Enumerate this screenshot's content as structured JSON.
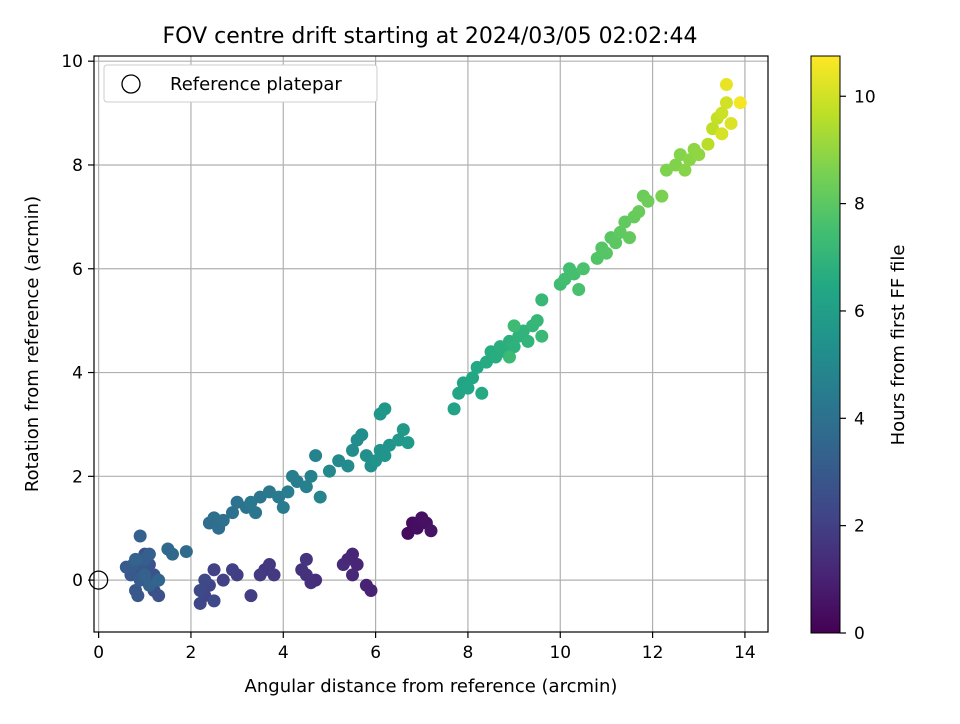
{
  "chart_data": {
    "type": "scatter",
    "title": "FOV centre drift starting at 2024/03/05 02:02:44",
    "xlabel": "Angular distance from reference (arcmin)",
    "ylabel": "Rotation from reference (arcmin)",
    "xlim": [
      -0.1,
      14.5
    ],
    "ylim": [
      -1.0,
      10.1
    ],
    "xticks": [
      0,
      2,
      4,
      6,
      8,
      10,
      12,
      14
    ],
    "yticks": [
      0,
      2,
      4,
      6,
      8,
      10
    ],
    "grid": true,
    "legend": {
      "placement": "top-left",
      "entries": [
        "Reference platepar"
      ]
    },
    "reference_point": {
      "x": 0,
      "y": 0,
      "marker": "open-circle"
    },
    "colorbar": {
      "label": "Hours from first FF file",
      "colormap": "viridis",
      "range": [
        0,
        10.75
      ],
      "ticks": [
        0,
        2,
        4,
        6,
        8,
        10
      ]
    },
    "series": [
      {
        "color_by": "hours",
        "points": [
          [
            6.7,
            0.9,
            0.3
          ],
          [
            6.8,
            1.1,
            0.35
          ],
          [
            6.9,
            1.0,
            0.4
          ],
          [
            7.0,
            1.2,
            0.45
          ],
          [
            7.1,
            1.1,
            0.5
          ],
          [
            7.2,
            0.95,
            0.55
          ],
          [
            5.9,
            -0.2,
            1.0
          ],
          [
            5.8,
            -0.1,
            1.05
          ],
          [
            5.6,
            0.3,
            1.1
          ],
          [
            5.5,
            0.5,
            1.15
          ],
          [
            5.4,
            0.4,
            1.2
          ],
          [
            5.5,
            0.1,
            1.25
          ],
          [
            5.3,
            0.3,
            1.3
          ],
          [
            4.7,
            0.0,
            1.4
          ],
          [
            4.6,
            -0.05,
            1.45
          ],
          [
            4.5,
            0.1,
            1.5
          ],
          [
            4.4,
            0.2,
            1.55
          ],
          [
            4.5,
            0.4,
            1.6
          ],
          [
            3.6,
            0.2,
            1.7
          ],
          [
            3.7,
            0.3,
            1.75
          ],
          [
            3.8,
            0.1,
            1.8
          ],
          [
            3.5,
            0.1,
            1.85
          ],
          [
            3.3,
            -0.3,
            1.9
          ],
          [
            3.0,
            0.1,
            1.95
          ],
          [
            2.9,
            0.2,
            2.0
          ],
          [
            2.7,
            0.0,
            2.05
          ],
          [
            2.5,
            0.2,
            2.1
          ],
          [
            2.4,
            -0.1,
            2.15
          ],
          [
            2.3,
            -0.3,
            2.2
          ],
          [
            2.2,
            -0.45,
            2.25
          ],
          [
            2.5,
            -0.4,
            2.3
          ],
          [
            2.3,
            0.0,
            2.35
          ],
          [
            2.2,
            -0.2,
            2.4
          ],
          [
            1.2,
            -0.2,
            2.6
          ],
          [
            1.3,
            -0.3,
            2.65
          ],
          [
            1.2,
            0.1,
            2.7
          ],
          [
            1.1,
            0.3,
            2.75
          ],
          [
            1.0,
            0.5,
            2.8
          ],
          [
            0.9,
            0.2,
            2.85
          ],
          [
            0.8,
            -0.2,
            2.9
          ],
          [
            0.85,
            -0.3,
            2.95
          ],
          [
            0.7,
            0.1,
            3.0
          ],
          [
            0.6,
            0.25,
            3.05
          ],
          [
            0.75,
            0.3,
            3.1
          ],
          [
            0.9,
            0.0,
            3.15
          ],
          [
            1.0,
            0.4,
            3.2
          ],
          [
            1.1,
            0.5,
            3.25
          ],
          [
            0.9,
            0.85,
            3.3
          ],
          [
            1.0,
            0.1,
            3.35
          ],
          [
            1.1,
            -0.1,
            3.4
          ],
          [
            0.8,
            0.4,
            3.45
          ],
          [
            1.3,
            0.0,
            3.5
          ],
          [
            1.5,
            0.6,
            3.6
          ],
          [
            1.6,
            0.5,
            3.65
          ],
          [
            1.9,
            0.55,
            3.7
          ],
          [
            2.4,
            1.1,
            3.8
          ],
          [
            2.6,
            1.0,
            3.85
          ],
          [
            2.5,
            1.2,
            3.9
          ],
          [
            2.7,
            1.15,
            3.95
          ],
          [
            2.9,
            1.3,
            4.0
          ],
          [
            3.0,
            1.5,
            4.05
          ],
          [
            3.2,
            1.4,
            4.1
          ],
          [
            3.4,
            1.3,
            4.15
          ],
          [
            3.5,
            1.6,
            4.2
          ],
          [
            3.7,
            1.7,
            4.25
          ],
          [
            3.3,
            1.5,
            4.3
          ],
          [
            3.9,
            1.6,
            4.4
          ],
          [
            4.0,
            1.4,
            4.45
          ],
          [
            4.1,
            1.7,
            4.5
          ],
          [
            4.3,
            1.9,
            4.55
          ],
          [
            4.2,
            2.0,
            4.6
          ],
          [
            4.5,
            1.8,
            4.65
          ],
          [
            4.6,
            2.0,
            4.7
          ],
          [
            4.7,
            2.4,
            4.75
          ],
          [
            4.8,
            1.6,
            4.8
          ],
          [
            5.0,
            2.1,
            5.0
          ],
          [
            5.2,
            2.3,
            5.05
          ],
          [
            5.4,
            2.2,
            5.1
          ],
          [
            5.5,
            2.5,
            5.15
          ],
          [
            5.6,
            2.7,
            5.2
          ],
          [
            5.7,
            2.8,
            5.25
          ],
          [
            5.8,
            2.4,
            5.3
          ],
          [
            5.9,
            2.2,
            5.35
          ],
          [
            6.0,
            2.3,
            5.4
          ],
          [
            6.1,
            2.5,
            5.45
          ],
          [
            6.2,
            2.4,
            5.5
          ],
          [
            6.3,
            2.6,
            5.55
          ],
          [
            6.1,
            3.2,
            5.6
          ],
          [
            6.2,
            3.3,
            5.65
          ],
          [
            6.5,
            2.7,
            5.7
          ],
          [
            6.6,
            2.9,
            5.75
          ],
          [
            6.7,
            2.65,
            5.8
          ],
          [
            7.7,
            3.3,
            6.2
          ],
          [
            7.8,
            3.6,
            6.25
          ],
          [
            7.9,
            3.8,
            6.3
          ],
          [
            8.0,
            3.7,
            6.35
          ],
          [
            8.1,
            3.9,
            6.4
          ],
          [
            8.2,
            4.1,
            6.45
          ],
          [
            8.3,
            3.6,
            6.5
          ],
          [
            8.4,
            4.2,
            6.55
          ],
          [
            8.5,
            4.4,
            6.6
          ],
          [
            8.6,
            4.3,
            6.65
          ],
          [
            8.7,
            4.5,
            6.7
          ],
          [
            8.8,
            4.4,
            6.75
          ],
          [
            8.9,
            4.6,
            6.8
          ],
          [
            9.0,
            4.5,
            6.85
          ],
          [
            9.1,
            4.7,
            6.9
          ],
          [
            9.2,
            4.8,
            6.95
          ],
          [
            9.3,
            4.6,
            7.0
          ],
          [
            9.4,
            4.9,
            7.05
          ],
          [
            9.5,
            5.0,
            7.1
          ],
          [
            9.6,
            5.4,
            7.15
          ],
          [
            9.6,
            4.7,
            7.2
          ],
          [
            8.9,
            4.3,
            7.25
          ],
          [
            9.0,
            4.9,
            7.3
          ],
          [
            10.0,
            5.7,
            7.4
          ],
          [
            10.1,
            5.8,
            7.45
          ],
          [
            10.2,
            6.0,
            7.5
          ],
          [
            10.3,
            5.9,
            7.55
          ],
          [
            10.4,
            5.6,
            7.6
          ],
          [
            10.5,
            6.0,
            7.65
          ],
          [
            10.8,
            6.2,
            7.8
          ],
          [
            10.9,
            6.4,
            7.85
          ],
          [
            11.0,
            6.3,
            7.9
          ],
          [
            11.1,
            6.6,
            7.95
          ],
          [
            11.2,
            6.5,
            8.0
          ],
          [
            11.3,
            6.7,
            8.05
          ],
          [
            11.4,
            6.9,
            8.1
          ],
          [
            11.5,
            6.6,
            8.15
          ],
          [
            11.6,
            7.0,
            8.2
          ],
          [
            11.7,
            7.1,
            8.25
          ],
          [
            11.8,
            7.4,
            8.3
          ],
          [
            11.9,
            7.3,
            8.35
          ],
          [
            12.2,
            7.4,
            8.6
          ],
          [
            12.3,
            7.9,
            8.65
          ],
          [
            12.5,
            8.0,
            8.7
          ],
          [
            12.6,
            8.2,
            8.75
          ],
          [
            12.7,
            7.9,
            8.8
          ],
          [
            12.8,
            8.1,
            8.85
          ],
          [
            12.9,
            8.3,
            8.9
          ],
          [
            13.0,
            8.2,
            8.95
          ],
          [
            13.2,
            8.4,
            9.6
          ],
          [
            13.3,
            8.7,
            9.7
          ],
          [
            13.4,
            8.9,
            9.8
          ],
          [
            13.5,
            9.0,
            9.9
          ],
          [
            13.6,
            9.2,
            10.0
          ],
          [
            13.5,
            8.6,
            10.1
          ],
          [
            13.7,
            8.8,
            10.2
          ],
          [
            13.6,
            9.55,
            10.4
          ],
          [
            13.9,
            9.2,
            10.6
          ]
        ]
      }
    ]
  }
}
